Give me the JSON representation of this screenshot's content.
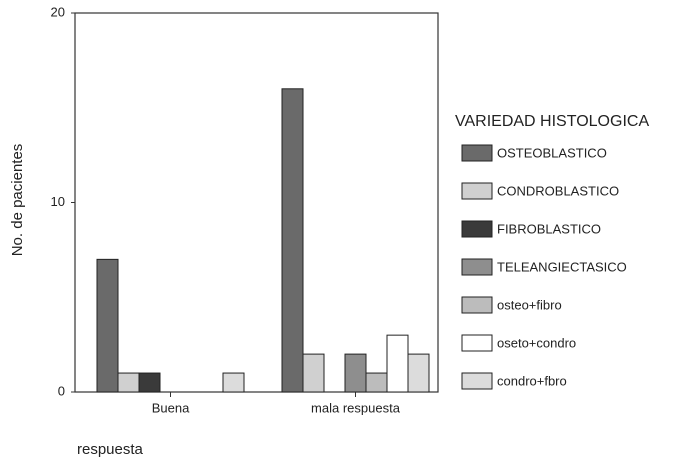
{
  "chart_data": {
    "type": "bar",
    "x_label": "respuesta",
    "y_label": "No. de pacientes",
    "legend_title": "VARIEDAD HISTOLOGICA",
    "categories": [
      "Buena",
      "mala respuesta"
    ],
    "series": [
      {
        "name": "OSTEOBLASTICO",
        "color": "#6a6a6a",
        "values": [
          7,
          16
        ]
      },
      {
        "name": "CONDROBLASTICO",
        "color": "#d0d0d0",
        "values": [
          1,
          2
        ]
      },
      {
        "name": "FIBROBLASTICO",
        "color": "#3a3a3a",
        "values": [
          1,
          0
        ]
      },
      {
        "name": "TELEANGIECTASICO",
        "color": "#8e8e8e",
        "values": [
          0,
          2
        ]
      },
      {
        "name": "osteo+fibro",
        "color": "#bcbcbc",
        "values": [
          0,
          1
        ]
      },
      {
        "name": "oseto+condro",
        "color": "#ffffff",
        "values": [
          0,
          3
        ]
      },
      {
        "name": "condro+fbro",
        "color": "#dcdcdc",
        "values": [
          1,
          2
        ]
      }
    ],
    "ylim": [
      0,
      20
    ],
    "yticks": [
      0,
      10,
      20
    ],
    "grid": false,
    "legend": "right"
  }
}
